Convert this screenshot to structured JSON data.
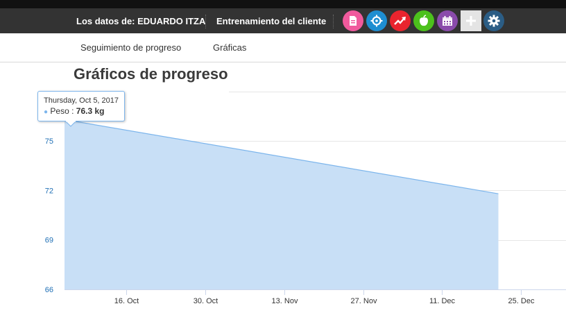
{
  "topbar": {
    "client_label": "Los datos de: EDUARDO ITZA",
    "training_label": "Entrenamiento del cliente",
    "icons": [
      {
        "name": "document-icon",
        "color": "#f05a9d"
      },
      {
        "name": "target-icon",
        "color": "#1e8ed1"
      },
      {
        "name": "trend-up-icon",
        "color": "#e9242e"
      },
      {
        "name": "apple-icon",
        "color": "#4cc11c"
      },
      {
        "name": "calendar-icon",
        "color": "#8a4bab"
      },
      {
        "name": "plus-icon",
        "color": "#e4e4e4"
      },
      {
        "name": "gear-icon",
        "color": "#2b5d85"
      }
    ]
  },
  "subnav": {
    "tab_progress": "Seguimiento de progreso",
    "tab_charts": "Gráficas",
    "active": "tab_charts"
  },
  "page": {
    "title": "Gráficos de progreso"
  },
  "tooltip": {
    "date": "Thursday, Oct 5, 2017",
    "series": "Peso",
    "separator": ":",
    "value": "76.3 kg"
  },
  "chart_data": {
    "type": "area",
    "title": "",
    "xlabel": "",
    "ylabel": "",
    "x_ticks": [
      "16. Oct",
      "30. Oct",
      "13. Nov",
      "27. Nov",
      "11. Dec",
      "25. Dec"
    ],
    "y_ticks": [
      66,
      69,
      72,
      75
    ],
    "ylim": [
      66,
      78.5
    ],
    "xlim": [
      "2017-10-05",
      "2018-01-02"
    ],
    "grid": true,
    "series": [
      {
        "name": "Peso",
        "unit": "kg",
        "color": "#7cb5ec",
        "fill": "#c8dff6",
        "points": [
          {
            "x": "2017-10-05",
            "y": 76.3
          },
          {
            "x": "2017-12-21",
            "y": 71.8
          }
        ]
      }
    ]
  }
}
